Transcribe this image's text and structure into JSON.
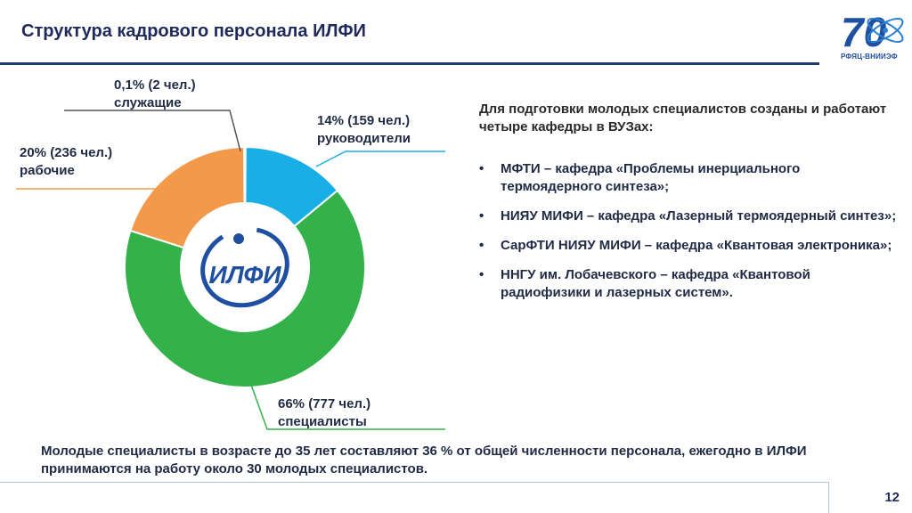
{
  "header": {
    "title": "Структура кадрового персонала ИЛФИ",
    "logo_text": "РФЯЦ-ВНИИЭФ",
    "logo_number": "70"
  },
  "center_logo_text": "ИЛФИ",
  "chart_labels": {
    "employees": [
      "0,1% (2 чел.)",
      "служащие"
    ],
    "managers": [
      "14% (159 чел.)",
      "руководители"
    ],
    "workers": [
      "20% (236 чел.)",
      "рабочие"
    ],
    "specialists": [
      "66% (777 чел.)",
      "специалисты"
    ]
  },
  "chart_data": {
    "type": "pie",
    "variant": "donut",
    "slices": [
      {
        "label": "руководители",
        "percent": 14,
        "count": 159,
        "color": "#1aaee6"
      },
      {
        "label": "специалисты",
        "percent": 66,
        "count": 777,
        "color": "#33b24a"
      },
      {
        "label": "рабочие",
        "percent": 20,
        "count": 236,
        "color": "#f39a4a"
      },
      {
        "label": "служащие",
        "percent": 0.1,
        "count": 2,
        "color": "#c0392b"
      }
    ]
  },
  "intro": "Для подготовки молодых специалистов созданы и работают четыре кафедры в ВУЗах:",
  "bullets": [
    "МФТИ – кафедра «Проблемы инерциального термоядерного синтеза»;",
    "НИЯУ МИФИ – кафедра «Лазерный термоядерный синтез»;",
    "СарФТИ НИЯУ МИФИ – кафедра «Квантовая электроника»;",
    "ННГУ им. Лобачевского – кафедра «Квантовой радиофизики и лазерных систем»."
  ],
  "bullet_symbol": "•",
  "footer": "Молодые специалисты в возрасте до 35 лет составляют 36 % от общей численности персонала, ежегодно в ИЛФИ принимаются на работу около 30 молодых специалистов.",
  "page_number": "12",
  "colors": {
    "title": "#1f2a5a",
    "header_line": "#1f3a7a",
    "managers_line": "#1aaee6",
    "specialists_line": "#33b24a",
    "workers_line": "#f39a4a",
    "employees_line": "#555555"
  }
}
